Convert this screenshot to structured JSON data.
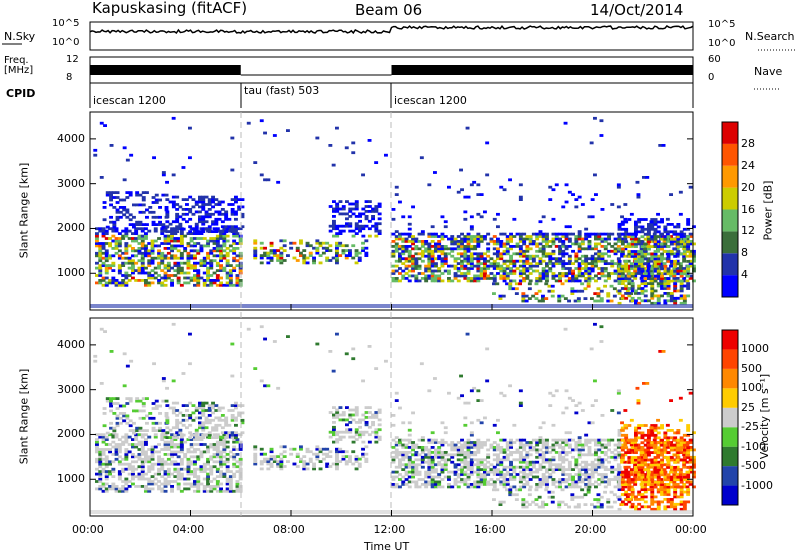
{
  "header": {
    "title": "Kapuskasing (fitACF)",
    "beam": "Beam 06",
    "date": "14/Oct/2014"
  },
  "strip_panels": {
    "nsky_label": "N.Sky",
    "nsky_ticks": [
      "10^5",
      "10^0"
    ],
    "nsearch_label": "N.Search",
    "nsearch_ticks": [
      "10^5",
      "10^0"
    ],
    "freq_label": "Freq.",
    "freq_unit": "[MHz]",
    "freq_ticks": [
      "12",
      "8"
    ],
    "nave_label": "Nave",
    "nave_ticks": [
      "60",
      "0"
    ],
    "cpid_label": "CPID",
    "cpid_segments": [
      {
        "label": "icescan 1200",
        "start_hour": 0,
        "end_hour": 6
      },
      {
        "label": "tau (fast) 503",
        "start_hour": 6,
        "end_hour": 12
      },
      {
        "label": "icescan 1200",
        "start_hour": 12,
        "end_hour": 24
      }
    ]
  },
  "chart_data": [
    {
      "type": "heatmap",
      "name": "power",
      "xlabel": "",
      "ylabel": "Slant Range [km]",
      "xlim": [
        0,
        24
      ],
      "ylim": [
        180,
        4600
      ],
      "yticks": [
        1000,
        2000,
        3000,
        4000
      ],
      "colorbar_label": "Power [dB]",
      "colorbar_ticks": [
        "4",
        "8",
        "12",
        "16",
        "20",
        "24",
        "28"
      ],
      "colorbar_range": [
        0,
        32
      ],
      "colors": [
        "#0000ff",
        "#2233aa",
        "#3a6e3a",
        "#66bb66",
        "#cccc00",
        "#ff9900",
        "#ff5500",
        "#dd0000"
      ]
    },
    {
      "type": "heatmap",
      "name": "velocity",
      "xlabel": "Time UT",
      "ylabel": "Slant Range [km]",
      "xlim": [
        0,
        24
      ],
      "ylim": [
        180,
        4600
      ],
      "xticks": [
        "00:00",
        "04:00",
        "08:00",
        "12:00",
        "16:00",
        "20:00",
        "00:00"
      ],
      "yticks": [
        1000,
        2000,
        3000,
        4000
      ],
      "colorbar_label": "Velocity [m s⁻¹]",
      "colorbar_ticks": [
        "1000",
        "500",
        "100",
        "25",
        "-25",
        "-100",
        "-500",
        "-1000"
      ],
      "colors": [
        "#0000cc",
        "#2244aa",
        "#2f7a2f",
        "#55cc33",
        "#cccccc",
        "#ffcc00",
        "#ff8800",
        "#ff4400",
        "#ee0000"
      ]
    }
  ]
}
